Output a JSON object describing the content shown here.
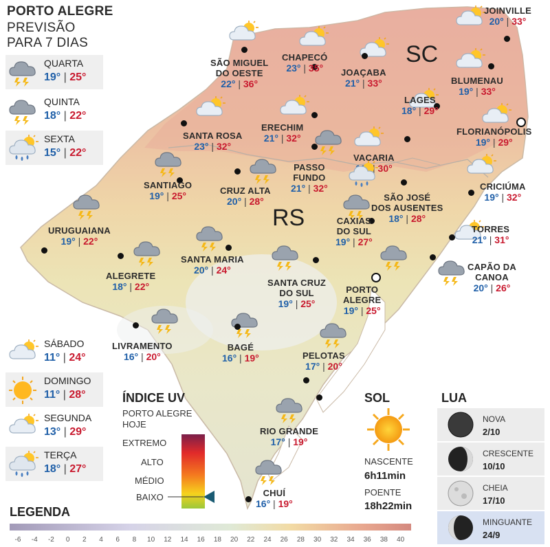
{
  "header": {
    "line1": "PORTO ALEGRE",
    "line2": "PREVISÃO",
    "line3": "PARA 7 DIAS"
  },
  "forecast": [
    {
      "day": "QUARTA",
      "min": "19°",
      "max": "25°",
      "icon": "storm-cloud-icon"
    },
    {
      "day": "QUINTA",
      "min": "18°",
      "max": "22°",
      "icon": "storm-cloud-icon"
    },
    {
      "day": "SEXTA",
      "min": "15°",
      "max": "22°",
      "icon": "sun-cloud-rain-icon"
    },
    {
      "day": "SÁBADO",
      "min": "11°",
      "max": "24°",
      "icon": "sun-cloud-icon"
    },
    {
      "day": "DOMINGO",
      "min": "11°",
      "max": "28°",
      "icon": "sun-icon"
    },
    {
      "day": "SEGUNDA",
      "min": "13°",
      "max": "29°",
      "icon": "sun-cloud-icon"
    },
    {
      "day": "TERÇA",
      "min": "18°",
      "max": "27°",
      "icon": "sun-cloud-rain-icon"
    }
  ],
  "regions": {
    "sc": "SC",
    "rs": "RS"
  },
  "cities": [
    {
      "name1": "JOINVILLE",
      "name2": "",
      "min": "20°",
      "max": "33°",
      "icon": "sun-cloud-icon"
    },
    {
      "name1": "SÃO MIGUEL",
      "name2": "DO OESTE",
      "min": "22°",
      "max": "36°",
      "icon": "sun-cloud-icon"
    },
    {
      "name1": "CHAPECÓ",
      "name2": "",
      "min": "23°",
      "max": "35°",
      "icon": "sun-cloud-icon"
    },
    {
      "name1": "JOAÇABA",
      "name2": "",
      "min": "21°",
      "max": "33°",
      "icon": "sun-cloud-icon"
    },
    {
      "name1": "BLUMENAU",
      "name2": "",
      "min": "19°",
      "max": "33°",
      "icon": "sun-cloud-icon"
    },
    {
      "name1": "LAGES",
      "name2": "",
      "min": "18°",
      "max": "29°",
      "icon": "sun-cloud-icon"
    },
    {
      "name1": "FLORIANÓPOLIS",
      "name2": "",
      "min": "19°",
      "max": "29°",
      "icon": "sun-cloud-icon"
    },
    {
      "name1": "SANTA ROSA",
      "name2": "",
      "min": "23°",
      "max": "32°",
      "icon": "sun-cloud-icon"
    },
    {
      "name1": "ERECHIM",
      "name2": "",
      "min": "21°",
      "max": "32°",
      "icon": "sun-cloud-icon"
    },
    {
      "name1": "VACARIA",
      "name2": "",
      "min": "18°",
      "max": "30°",
      "icon": "sun-cloud-icon"
    },
    {
      "name1": "PASSO",
      "name2": "FUNDO",
      "min": "21°",
      "max": "32°",
      "icon": "storm-cloud-icon"
    },
    {
      "name1": "SANTIAGO",
      "name2": "",
      "min": "19°",
      "max": "25°",
      "icon": "storm-cloud-icon"
    },
    {
      "name1": "CRUZ ALTA",
      "name2": "",
      "min": "20°",
      "max": "28°",
      "icon": "storm-cloud-icon"
    },
    {
      "name1": "CRICIÚMA",
      "name2": "",
      "min": "19°",
      "max": "32°",
      "icon": "sun-cloud-icon"
    },
    {
      "name1": "SÃO JOSÉ",
      "name2": "DOS AUSENTES",
      "min": "18°",
      "max": "28°",
      "icon": "sun-cloud-rain-icon"
    },
    {
      "name1": "URUGUAIANA",
      "name2": "",
      "min": "19°",
      "max": "22°",
      "icon": "storm-cloud-icon"
    },
    {
      "name1": "CAXIAS",
      "name2": "DO SUL",
      "min": "19°",
      "max": "27°",
      "icon": "storm-cloud-icon"
    },
    {
      "name1": "TORRES",
      "name2": "",
      "min": "21°",
      "max": "31°",
      "icon": "sun-cloud-icon"
    },
    {
      "name1": "SANTA MARIA",
      "name2": "",
      "min": "20°",
      "max": "24°",
      "icon": "storm-cloud-icon"
    },
    {
      "name1": "ALEGRETE",
      "name2": "",
      "min": "18°",
      "max": "22°",
      "icon": "storm-cloud-icon"
    },
    {
      "name1": "CAPÃO DA",
      "name2": "CANOA",
      "min": "20°",
      "max": "26°",
      "icon": "storm-cloud-icon"
    },
    {
      "name1": "SANTA CRUZ",
      "name2": "DO SUL",
      "min": "19°",
      "max": "25°",
      "icon": "storm-cloud-icon"
    },
    {
      "name1": "PORTO",
      "name2": "ALEGRE",
      "min": "19°",
      "max": "25°",
      "icon": "storm-cloud-icon"
    },
    {
      "name1": "LIVRAMENTO",
      "name2": "",
      "min": "16°",
      "max": "20°",
      "icon": "storm-cloud-icon"
    },
    {
      "name1": "BAGÉ",
      "name2": "",
      "min": "16°",
      "max": "19°",
      "icon": "storm-cloud-icon"
    },
    {
      "name1": "PELOTAS",
      "name2": "",
      "min": "17°",
      "max": "20°",
      "icon": "storm-cloud-icon"
    },
    {
      "name1": "RIO GRANDE",
      "name2": "",
      "min": "17°",
      "max": "19°",
      "icon": "storm-cloud-icon"
    },
    {
      "name1": "CHUÍ",
      "name2": "",
      "min": "16°",
      "max": "19°",
      "icon": "storm-cloud-icon"
    }
  ],
  "uv": {
    "title": "ÍNDICE UV",
    "subtitle1": "PORTO ALEGRE",
    "subtitle2": "HOJE",
    "levels": [
      "EXTREMO",
      "ALTO",
      "MÉDIO",
      "BAIXO"
    ],
    "current": "BAIXO"
  },
  "sun": {
    "title": "SOL",
    "rise_label": "NASCENTE",
    "rise": "6h11min",
    "set_label": "POENTE",
    "set": "18h22min"
  },
  "moon": {
    "title": "LUA",
    "phases": [
      {
        "label": "NOVA",
        "date": "2/10"
      },
      {
        "label": "CRESCENTE",
        "date": "10/10"
      },
      {
        "label": "CHEIA",
        "date": "17/10"
      },
      {
        "label": "MINGUANTE",
        "date": "24/9"
      }
    ]
  },
  "legend": {
    "title": "LEGENDA",
    "ticks": [
      "-6",
      "-4",
      "-2",
      "0",
      "2",
      "4",
      "6",
      "8",
      "10",
      "12",
      "14",
      "16",
      "18",
      "20",
      "22",
      "24",
      "26",
      "28",
      "30",
      "32",
      "34",
      "36",
      "38",
      "40"
    ]
  },
  "colors": {
    "min_temp": "#1f5fa8",
    "max_temp": "#c8192e",
    "moon_highlight": "#d8e1f2"
  }
}
